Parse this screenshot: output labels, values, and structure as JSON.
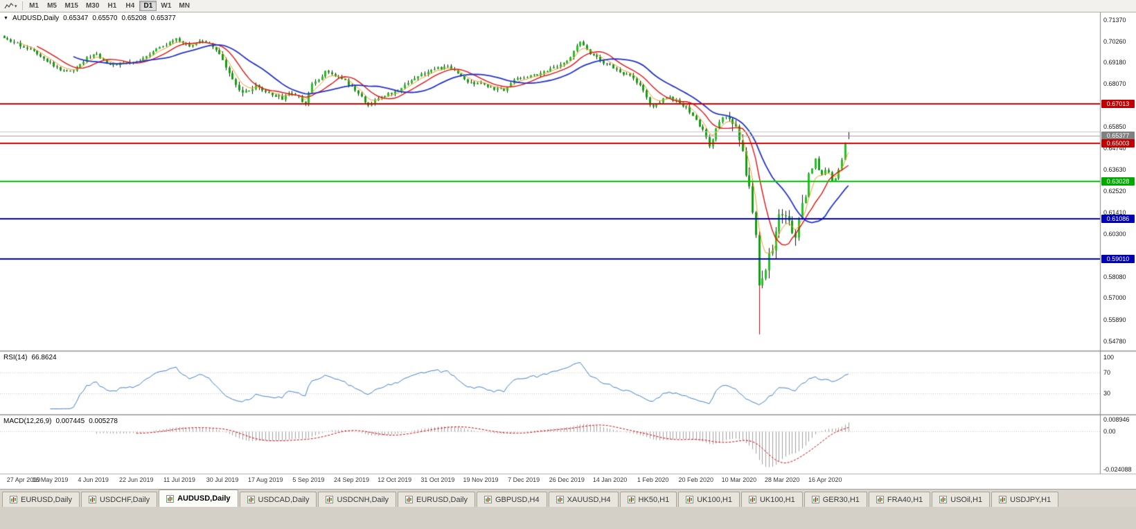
{
  "icons": {
    "collapse_triangle": "▼",
    "tool_caret": "▾"
  },
  "toolbar": {
    "timeframes": [
      "M1",
      "M5",
      "M15",
      "M30",
      "H1",
      "H4",
      "D1",
      "W1",
      "MN"
    ],
    "active_timeframe": "D1"
  },
  "main_pane": {
    "symbol": "AUDUSD,Daily",
    "open": "0.65347",
    "high": "0.65570",
    "low": "0.65208",
    "close": "0.65377"
  },
  "rsi_pane": {
    "label": "RSI(14)",
    "value": "66.8624"
  },
  "macd_pane": {
    "label": "MACD(12,26,9)",
    "value_main": "0.007445",
    "value_signal": "0.005278"
  },
  "tabs": {
    "items": [
      "EURUSD,Daily",
      "USDCHF,Daily",
      "AUDUSD,Daily",
      "USDCAD,Daily",
      "USDCNH,Daily",
      "EURUSD,Daily",
      "GBPUSD,H4",
      "XAUUSD,H4",
      "HK50,H1",
      "UK100,H1",
      "UK100,H1",
      "GER30,H1",
      "FRA40,H1",
      "USOil,H1",
      "USDJPY,H1"
    ],
    "active_index": 2
  },
  "chart_data": {
    "type": "candlestick",
    "symbol": "AUDUSD",
    "timeframe": "Daily",
    "num_candles": 256,
    "y_axis": {
      "min": 0.543,
      "max": 0.7175
    },
    "y_tick_labels": [
      "0.71370",
      "0.70260",
      "0.69180",
      "0.68070",
      "0.65850",
      "0.64740",
      "0.63630",
      "0.62520",
      "0.61410",
      "0.60300",
      "0.58080",
      "0.57000",
      "0.55890",
      "0.54780"
    ],
    "x_tick_labels": [
      "27 Apr 2019",
      "16 May 2019",
      "4 Jun 2019",
      "22 Jun 2019",
      "11 Jul 2019",
      "30 Jul 2019",
      "17 Aug 2019",
      "5 Sep 2019",
      "24 Sep 2019",
      "12 Oct 2019",
      "31 Oct 2019",
      "19 Nov 2019",
      "7 Dec 2019",
      "26 Dec 2019",
      "14 Jan 2020",
      "1 Feb 2020",
      "20 Feb 2020",
      "10 Mar 2020",
      "28 Mar 2020",
      "16 Apr 2020"
    ],
    "last_candle": {
      "open": 0.65347,
      "high": 0.6557,
      "low": 0.65208,
      "close": 0.65377
    },
    "spike_low": 0.5512,
    "price_path": [
      [
        0.0,
        0.7035
      ],
      [
        0.012,
        0.7018
      ],
      [
        0.022,
        0.7
      ],
      [
        0.032,
        0.6988
      ],
      [
        0.045,
        0.695
      ],
      [
        0.059,
        0.6898
      ],
      [
        0.072,
        0.6868
      ],
      [
        0.082,
        0.688
      ],
      [
        0.09,
        0.691
      ],
      [
        0.1,
        0.6945
      ],
      [
        0.109,
        0.6962
      ],
      [
        0.118,
        0.693
      ],
      [
        0.128,
        0.6898
      ],
      [
        0.14,
        0.6922
      ],
      [
        0.152,
        0.6912
      ],
      [
        0.16,
        0.6928
      ],
      [
        0.172,
        0.6965
      ],
      [
        0.183,
        0.6995
      ],
      [
        0.196,
        0.7015
      ],
      [
        0.205,
        0.7038
      ],
      [
        0.213,
        0.7012
      ],
      [
        0.222,
        0.6998
      ],
      [
        0.232,
        0.703
      ],
      [
        0.243,
        0.702
      ],
      [
        0.252,
        0.6982
      ],
      [
        0.262,
        0.6888
      ],
      [
        0.27,
        0.6828
      ],
      [
        0.278,
        0.6772
      ],
      [
        0.287,
        0.6758
      ],
      [
        0.297,
        0.6788
      ],
      [
        0.306,
        0.6768
      ],
      [
        0.313,
        0.6758
      ],
      [
        0.322,
        0.6745
      ],
      [
        0.33,
        0.6728
      ],
      [
        0.34,
        0.6762
      ],
      [
        0.349,
        0.6742
      ],
      [
        0.356,
        0.6698
      ],
      [
        0.363,
        0.6792
      ],
      [
        0.372,
        0.6832
      ],
      [
        0.381,
        0.6872
      ],
      [
        0.39,
        0.6852
      ],
      [
        0.4,
        0.6838
      ],
      [
        0.407,
        0.6808
      ],
      [
        0.414,
        0.6778
      ],
      [
        0.422,
        0.6742
      ],
      [
        0.43,
        0.67
      ],
      [
        0.438,
        0.6712
      ],
      [
        0.448,
        0.6742
      ],
      [
        0.458,
        0.6758
      ],
      [
        0.465,
        0.6768
      ],
      [
        0.475,
        0.6802
      ],
      [
        0.485,
        0.6838
      ],
      [
        0.495,
        0.6858
      ],
      [
        0.505,
        0.6875
      ],
      [
        0.516,
        0.6888
      ],
      [
        0.525,
        0.6892
      ],
      [
        0.535,
        0.6872
      ],
      [
        0.545,
        0.6832
      ],
      [
        0.555,
        0.6802
      ],
      [
        0.566,
        0.681
      ],
      [
        0.576,
        0.6792
      ],
      [
        0.586,
        0.6772
      ],
      [
        0.595,
        0.6782
      ],
      [
        0.605,
        0.6838
      ],
      [
        0.617,
        0.684
      ],
      [
        0.628,
        0.6852
      ],
      [
        0.64,
        0.6868
      ],
      [
        0.652,
        0.6888
      ],
      [
        0.66,
        0.6902
      ],
      [
        0.668,
        0.6928
      ],
      [
        0.675,
        0.6985
      ],
      [
        0.681,
        0.7022
      ],
      [
        0.688,
        0.7
      ],
      [
        0.695,
        0.6962
      ],
      [
        0.705,
        0.6928
      ],
      [
        0.712,
        0.6908
      ],
      [
        0.719,
        0.6898
      ],
      [
        0.728,
        0.6872
      ],
      [
        0.738,
        0.6852
      ],
      [
        0.748,
        0.6822
      ],
      [
        0.757,
        0.6772
      ],
      [
        0.765,
        0.67
      ],
      [
        0.77,
        0.6692
      ],
      [
        0.778,
        0.6722
      ],
      [
        0.785,
        0.6742
      ],
      [
        0.793,
        0.6722
      ],
      [
        0.8,
        0.6712
      ],
      [
        0.808,
        0.6682
      ],
      [
        0.815,
        0.6652
      ],
      [
        0.82,
        0.6612
      ],
      [
        0.828,
        0.6562
      ],
      [
        0.836,
        0.6472
      ],
      [
        0.843,
        0.6572
      ],
      [
        0.85,
        0.6628
      ],
      [
        0.856,
        0.6642
      ],
      [
        0.862,
        0.6588
      ],
      [
        0.867,
        0.6562
      ],
      [
        0.871,
        0.6498
      ],
      [
        0.876,
        0.6458
      ],
      [
        0.88,
        0.6292
      ],
      [
        0.884,
        0.6232
      ],
      [
        0.888,
        0.6122
      ],
      [
        0.891,
        0.5992
      ],
      [
        0.894,
        0.5748
      ],
      [
        0.898,
        0.5802
      ],
      [
        0.902,
        0.5832
      ],
      [
        0.907,
        0.5968
      ],
      [
        0.911,
        0.5958
      ],
      [
        0.914,
        0.6058
      ],
      [
        0.918,
        0.6162
      ],
      [
        0.922,
        0.6132
      ],
      [
        0.927,
        0.6135
      ],
      [
        0.931,
        0.6092
      ],
      [
        0.935,
        0.5998
      ],
      [
        0.94,
        0.6088
      ],
      [
        0.945,
        0.6168
      ],
      [
        0.949,
        0.6228
      ],
      [
        0.953,
        0.6348
      ],
      [
        0.958,
        0.6378
      ],
      [
        0.962,
        0.6432
      ],
      [
        0.966,
        0.6322
      ],
      [
        0.97,
        0.6352
      ],
      [
        0.974,
        0.6362
      ],
      [
        0.978,
        0.6332
      ],
      [
        0.981,
        0.6292
      ],
      [
        0.985,
        0.6318
      ],
      [
        0.988,
        0.6368
      ],
      [
        0.991,
        0.6392
      ],
      [
        0.994,
        0.6462
      ],
      [
        0.997,
        0.6512
      ],
      [
        1.0,
        0.6538
      ]
    ],
    "candle_style": {
      "bull": "#23C223",
      "bear": "#0FA00F",
      "wick": "#151515",
      "spike_wick": "#E00000"
    },
    "moving_averages": [
      {
        "name": "fast-lwma",
        "period": 5,
        "method": "ema",
        "color": "#E8A020",
        "width": 1
      },
      {
        "name": "mid-ma",
        "period": 10,
        "method": "sma",
        "color": "#E01010",
        "width": 1.4
      },
      {
        "name": "slow-ma",
        "period": 21,
        "method": "sma",
        "color": "#2233CC",
        "width": 1.8
      }
    ],
    "h_lines": [
      {
        "price": 0.67013,
        "color": "#D40000",
        "width": 2
      },
      {
        "price": 0.656,
        "color": "#C4C4C4",
        "width": 1
      },
      {
        "price": 0.65377,
        "color": "#A0A0A0",
        "width": 1
      },
      {
        "price": 0.65003,
        "color": "#D40000",
        "width": 2
      },
      {
        "price": 0.63028,
        "color": "#00CC00",
        "width": 2
      },
      {
        "price": 0.61086,
        "color": "#0000CC",
        "width": 2
      },
      {
        "price": 0.5901,
        "color": "#0000CC",
        "width": 2
      }
    ],
    "price_tags": [
      {
        "text": "0.67013",
        "price": 0.67013,
        "color": "#C00000"
      },
      {
        "text": "0.65377",
        "price": 0.65377,
        "color": "#808080"
      },
      {
        "text": "0.65003",
        "price": 0.65003,
        "color": "#C00000"
      },
      {
        "text": "0.63028",
        "price": 0.63028,
        "color": "#00A800"
      },
      {
        "text": "0.61086",
        "price": 0.61086,
        "color": "#0000B0"
      },
      {
        "text": "0.59010",
        "price": 0.5901,
        "color": "#0000B0"
      }
    ],
    "rsi": {
      "period": 14,
      "levels": [
        70,
        30
      ],
      "color": "#4080C8",
      "scale_labels": [
        "100",
        "70",
        "30"
      ],
      "current": 66.8624
    },
    "macd": {
      "fast": 12,
      "slow": 26,
      "signal": 9,
      "hist_color": "#A0A0A0",
      "signal_color": "#DD0000",
      "y_max": 0.0096,
      "y_min": -0.0252,
      "current_main": 0.007445,
      "current_signal": 0.005278,
      "axis_labels": [
        "0.008946",
        "0.00",
        "-0.024088"
      ]
    }
  }
}
